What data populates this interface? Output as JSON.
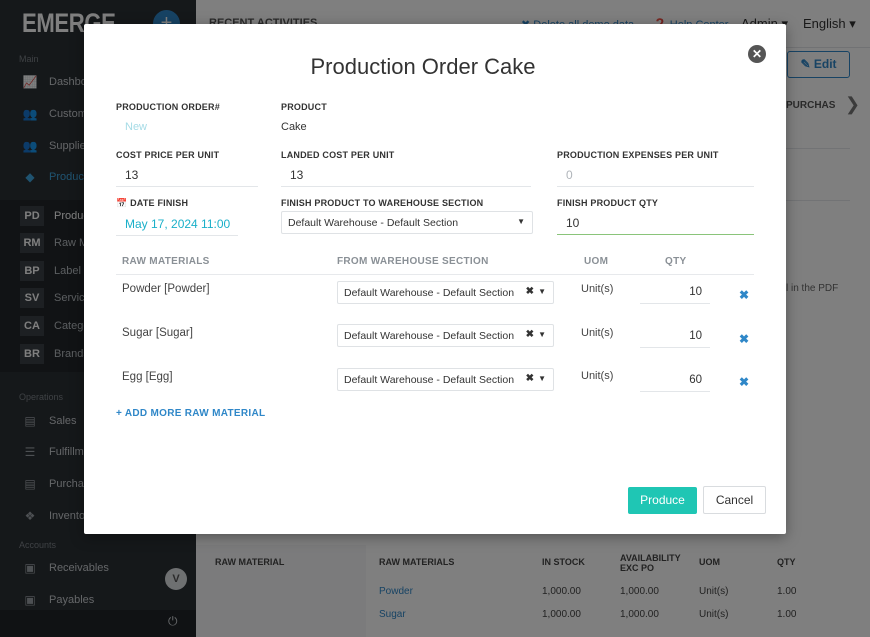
{
  "sidebar": {
    "logo": "EMERGE",
    "plus": "+",
    "sections": {
      "main": "Main",
      "operations": "Operations",
      "accounts": "Accounts"
    },
    "items": [
      {
        "label": "Dashboard",
        "icon": "chart-icon"
      },
      {
        "label": "Customers",
        "icon": "users-icon"
      },
      {
        "label": "Suppliers",
        "icon": "users-icon"
      },
      {
        "label": "Products",
        "icon": "tag-icon"
      }
    ],
    "sub_items": [
      {
        "badge": "PD",
        "label": "Products"
      },
      {
        "badge": "RM",
        "label": "Raw Materials"
      },
      {
        "badge": "BP",
        "label": "Label"
      },
      {
        "badge": "SV",
        "label": "Services"
      },
      {
        "badge": "CA",
        "label": "Categories"
      },
      {
        "badge": "BR",
        "label": "Brands"
      }
    ],
    "operations": [
      {
        "label": "Sales",
        "icon": "book-icon"
      },
      {
        "label": "Fulfillment",
        "icon": "list-icon"
      },
      {
        "label": "Purchases",
        "icon": "book-icon"
      },
      {
        "label": "Inventory",
        "icon": "cubes-icon"
      }
    ],
    "accounts": [
      {
        "label": "Receivables",
        "icon": "money-icon"
      },
      {
        "label": "Payables",
        "icon": "money-icon"
      }
    ],
    "collapse": "V",
    "power": "⏻"
  },
  "topbar": {
    "recent": "RECENT ACTIVITIES",
    "delete_demo": "Delete all demo data",
    "help": "Help Center",
    "admin": "Admin",
    "language": "English"
  },
  "background": {
    "edit": "Edit",
    "purchase_tab": "PURCHAS",
    "pdf_note": "l in the PDF",
    "table": {
      "headers": [
        "RAW MATERIAL",
        "RAW MATERIALS",
        "IN STOCK",
        "AVAILABILITY EXC PO",
        "UOM",
        "QTY"
      ],
      "rows": [
        [
          "Powder",
          "1,000.00",
          "1,000.00",
          "Unit(s)",
          "1.00"
        ],
        [
          "Sugar",
          "1,000.00",
          "1,000.00",
          "Unit(s)",
          "1.00"
        ]
      ]
    }
  },
  "modal": {
    "title": "Production Order Cake",
    "labels": {
      "order_no": "PRODUCTION ORDER#",
      "product": "PRODUCT",
      "cost_price": "COST PRICE PER UNIT",
      "landed_cost": "LANDED COST PER UNIT",
      "production_expenses": "PRODUCTION EXPENSES PER UNIT",
      "date_finish": "DATE FINISH",
      "finish_section": "FINISH PRODUCT TO WAREHOUSE SECTION",
      "finish_qty": "FINISH PRODUCT QTY"
    },
    "values": {
      "order_no": "New",
      "product": "Cake",
      "cost_price": "13",
      "landed_cost": "13",
      "production_expenses_placeholder": "0",
      "date_finish": "May 17, 2024 11:00",
      "finish_section": "Default Warehouse - Default Section",
      "finish_qty": "10"
    },
    "table_headers": [
      "RAW MATERIALS",
      "FROM WAREHOUSE SECTION",
      "UOM",
      "QTY"
    ],
    "raw_materials": [
      {
        "name": "Powder [Powder]",
        "section": "Default Warehouse - Default Section",
        "uom": "Unit(s)",
        "qty": "10"
      },
      {
        "name": "Sugar [Sugar]",
        "section": "Default Warehouse - Default Section",
        "uom": "Unit(s)",
        "qty": "10"
      },
      {
        "name": "Egg [Egg]",
        "section": "Default Warehouse - Default Section",
        "uom": "Unit(s)",
        "qty": "60"
      }
    ],
    "add_more": "+ ADD MORE RAW MATERIAL",
    "produce": "Produce",
    "cancel": "Cancel"
  }
}
